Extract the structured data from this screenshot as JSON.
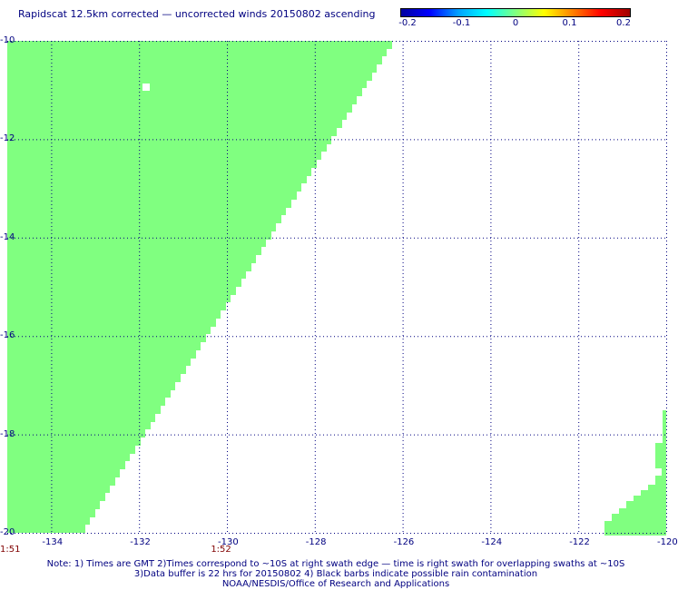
{
  "title": "Rapidscat 12.5km corrected — uncorrected winds 20150802 ascending",
  "colorbar": {
    "ticks": [
      "-0.2",
      "-0.1",
      "0",
      "0.1",
      "0.2"
    ],
    "range": [
      -0.2,
      0.2
    ],
    "colors": [
      "#0000a0",
      "#0000ff",
      "#00a0ff",
      "#00ffff",
      "#80ff80",
      "#ffff00",
      "#ff8000",
      "#ff0000",
      "#a00000"
    ]
  },
  "map": {
    "lon_ticks": [
      "-134",
      "-132",
      "-130",
      "-128",
      "-126",
      "-124",
      "-122",
      "-120"
    ],
    "lat_ticks": [
      "-10",
      "-12",
      "-14",
      "-16",
      "-18",
      "-20"
    ],
    "lon_range": [
      -135,
      -120
    ],
    "lat_range": [
      -10,
      -20
    ],
    "swath_color": "#80ff80",
    "grid_color": "#000080"
  },
  "times": [
    {
      "label": "1:51",
      "lon": -135
    },
    {
      "label": "1:52",
      "lon": -130.2
    }
  ],
  "notes": [
    "Note: 1) Times are GMT 2)Times correspond to ~10S at right swath edge — time is right swath for overlapping swaths at ~10S",
    "3)Data buffer is 22 hrs for 20150802 4) Black barbs indicate possible rain contamination",
    "NOAA/NESDIS/Office of Research and Applications"
  ]
}
